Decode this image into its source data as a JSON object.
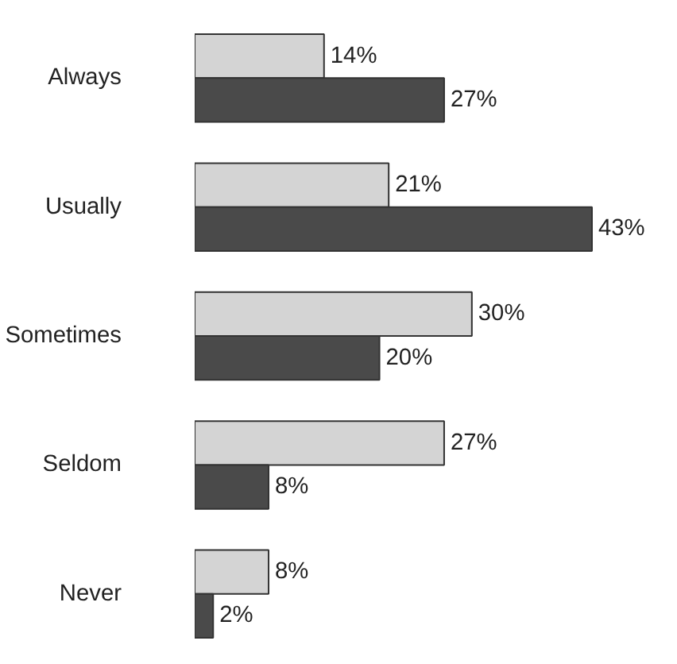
{
  "chart_data": {
    "type": "bar",
    "orientation": "horizontal",
    "categories": [
      "Always",
      "Usually",
      "Sometimes",
      "Seldom",
      "Never"
    ],
    "series": [
      {
        "color": "#d4d4d4",
        "values": [
          14,
          21,
          30,
          27,
          8
        ],
        "value_labels": [
          "14%",
          "21%",
          "30%",
          "27%",
          "8%"
        ]
      },
      {
        "color": "#4a4a4a",
        "values": [
          27,
          43,
          20,
          8,
          2
        ],
        "value_labels": [
          "27%",
          "43%",
          "20%",
          "8%",
          "2%"
        ]
      }
    ]
  }
}
